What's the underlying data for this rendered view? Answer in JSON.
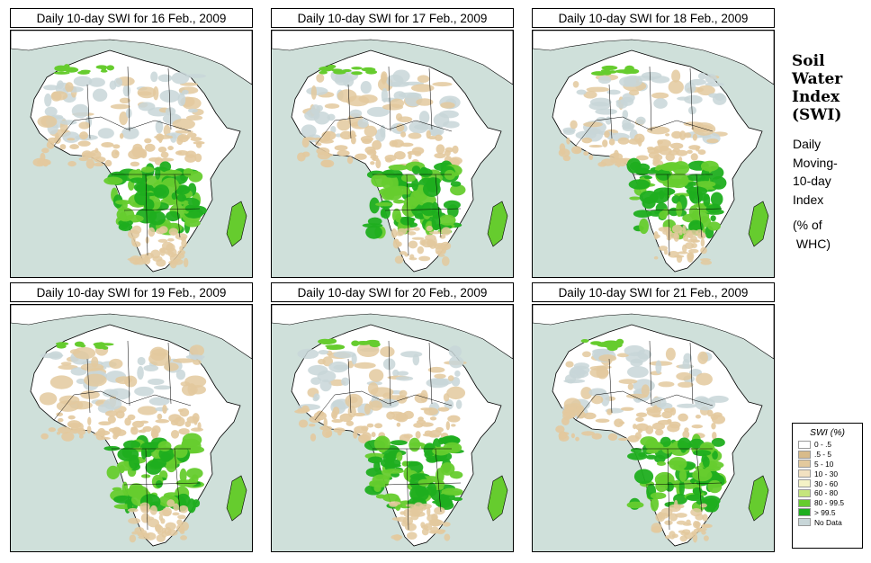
{
  "panels": [
    {
      "title": "Daily 10-day SWI for  16 Feb., 2009"
    },
    {
      "title": "Daily 10-day SWI for  17 Feb., 2009"
    },
    {
      "title": "Daily 10-day SWI for  18 Feb., 2009"
    },
    {
      "title": "Daily 10-day SWI for  19 Feb., 2009"
    },
    {
      "title": "Daily 10-day SWI for  20 Feb., 2009"
    },
    {
      "title": "Daily 10-day SWI for  21 Feb., 2009"
    }
  ],
  "side": {
    "heading_lines": [
      "Soil",
      "Water",
      "Index",
      "(SWI)"
    ],
    "sub_lines": [
      "Daily",
      "Moving-",
      "10-day",
      "Index"
    ],
    "unit_lines": [
      "(% of",
      " WHC)"
    ]
  },
  "legend": {
    "title": "SWI (%)",
    "items": [
      {
        "label": "0 - .5",
        "color": "#ffffff"
      },
      {
        "label": ".5 - 5",
        "color": "#d8bb8a"
      },
      {
        "label": "5 - 10",
        "color": "#e3c99d"
      },
      {
        "label": "10 - 30",
        "color": "#f2e1c1"
      },
      {
        "label": "30 - 60",
        "color": "#f4f2c6"
      },
      {
        "label": "60 - 80",
        "color": "#c5e57d"
      },
      {
        "label": "80 - 99.5",
        "color": "#66cc2e"
      },
      {
        "label": "> 99.5",
        "color": "#1fae1f"
      },
      {
        "label": "No Data",
        "color": "#c8d6d8"
      }
    ]
  },
  "colors": {
    "sea": "#cfe0da",
    "land": "#ffffff",
    "dry": "#e3c99d",
    "moist": "#66cc2e",
    "wet": "#1fae1f",
    "nodata": "#c8d6d8"
  }
}
